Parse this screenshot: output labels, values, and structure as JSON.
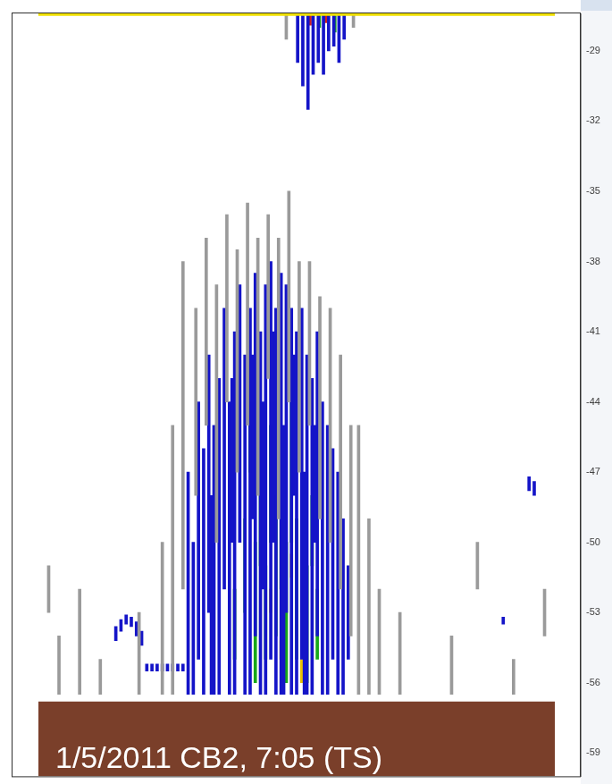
{
  "chart_data": {
    "type": "bar",
    "annotation": "1/5/2011 CB2, 7:05 (TS)",
    "xlim": [
      0,
      100
    ],
    "ylim": [
      -60,
      -27.4
    ],
    "yticks": [
      -29,
      -32,
      -35,
      -38,
      -41,
      -44,
      -47,
      -50,
      -53,
      -56,
      -59
    ],
    "tick_labels": "y",
    "grid": false,
    "series": [
      {
        "color": "#9a9a9a",
        "x": [
          24,
          26,
          28,
          30.5,
          32.5,
          34.5,
          36.5,
          38.5,
          40.5,
          42.5,
          44.5,
          46.5,
          48.5,
          50.5,
          52.5,
          54.5,
          56.5,
          58.5,
          60.5,
          62,
          64,
          66,
          70,
          8,
          4,
          2,
          80,
          85,
          92,
          98,
          12,
          19.5,
          48,
          61
        ],
        "values": [
          [
            -56.5,
            -50
          ],
          [
            -56.5,
            -45
          ],
          [
            -52,
            -38
          ],
          [
            -48,
            -40
          ],
          [
            -45,
            -37
          ],
          [
            -50,
            -39
          ],
          [
            -44,
            -36
          ],
          [
            -47,
            -37.5
          ],
          [
            -45,
            -35.5
          ],
          [
            -48,
            -37
          ],
          [
            -43,
            -36
          ],
          [
            -49,
            -37
          ],
          [
            -44,
            -35
          ],
          [
            -47,
            -38
          ],
          [
            -45,
            -38
          ],
          [
            -49,
            -39.5
          ],
          [
            -50,
            -40
          ],
          [
            -52,
            -42
          ],
          [
            -54,
            -45
          ],
          [
            -56.5,
            -45
          ],
          [
            -56.5,
            -49
          ],
          [
            -56.5,
            -52
          ],
          [
            -56.5,
            -53
          ],
          [
            -56.5,
            -52
          ],
          [
            -56.5,
            -54
          ],
          [
            -53,
            -51
          ],
          [
            -56.5,
            -54
          ],
          [
            -52,
            -50
          ],
          [
            -56.5,
            -55
          ],
          [
            -54,
            -52
          ],
          [
            -56.5,
            -55
          ],
          [
            -56.5,
            -53
          ],
          [
            -28.5,
            -27.4
          ],
          [
            -28,
            -27.4
          ]
        ]
      },
      {
        "color": "#1414c8",
        "x": [
          29,
          30,
          31,
          32,
          33,
          34,
          35,
          36,
          37,
          38,
          39,
          40,
          41,
          42,
          43,
          44,
          45,
          46,
          47,
          48,
          49,
          50,
          51,
          52,
          53,
          54,
          55,
          56,
          57,
          58,
          59,
          60,
          33.5,
          37.5,
          41.5,
          43.5,
          45.5,
          47.5,
          49.5,
          51.5,
          53.5,
          15,
          16,
          17,
          18,
          19,
          20,
          21,
          22,
          23,
          24,
          25,
          26,
          27,
          28,
          95,
          96,
          90,
          50.2,
          51.2,
          52.2,
          53.2,
          54.2,
          55.2,
          56.2,
          57.2,
          58.2,
          59.2
        ],
        "values": [
          [
            -56.5,
            -47
          ],
          [
            -56.5,
            -50
          ],
          [
            -55,
            -44
          ],
          [
            -56.5,
            -46
          ],
          [
            -53,
            -42
          ],
          [
            -56.5,
            -45
          ],
          [
            -56.5,
            -43
          ],
          [
            -52,
            -40
          ],
          [
            -56.5,
            -44
          ],
          [
            -56.5,
            -41
          ],
          [
            -50,
            -39
          ],
          [
            -56.5,
            -42
          ],
          [
            -56.5,
            -40
          ],
          [
            -54,
            -38.5
          ],
          [
            -56.5,
            -41
          ],
          [
            -56.5,
            -39
          ],
          [
            -55,
            -38
          ],
          [
            -56.5,
            -40
          ],
          [
            -56.5,
            -38.5
          ],
          [
            -53,
            -39
          ],
          [
            -56.5,
            -40
          ],
          [
            -56.5,
            -41
          ],
          [
            -55,
            -40
          ],
          [
            -56.5,
            -42
          ],
          [
            -56.5,
            -43
          ],
          [
            -54,
            -41
          ],
          [
            -56.5,
            -44
          ],
          [
            -56.5,
            -45
          ],
          [
            -55,
            -46
          ],
          [
            -56.5,
            -47
          ],
          [
            -56.5,
            -49
          ],
          [
            -55,
            -51
          ],
          [
            -56.5,
            -48
          ],
          [
            -50,
            -43
          ],
          [
            -49,
            -42
          ],
          [
            -52,
            -44
          ],
          [
            -50,
            -41
          ],
          [
            -56.5,
            -45
          ],
          [
            -48,
            -42
          ],
          [
            -56.5,
            -47
          ],
          [
            -50,
            -45
          ],
          [
            -54.2,
            -53.6
          ],
          [
            -53.8,
            -53.3
          ],
          [
            -53.5,
            -53.1
          ],
          [
            -53.6,
            -53.2
          ],
          [
            -54,
            -53.4
          ],
          [
            -54.4,
            -53.8
          ],
          [
            -55.5,
            -55.2
          ],
          [
            -55.5,
            -55.2
          ],
          [
            -55.5,
            -55.2
          ],
          [
            -55.5,
            -55.2
          ],
          [
            -55.5,
            -55.2
          ],
          [
            -55.5,
            -55.2
          ],
          [
            -55.5,
            -55.2
          ],
          [
            -55.5,
            -55.2
          ],
          [
            -47.8,
            -47.2
          ],
          [
            -48,
            -47.4
          ],
          [
            -53.5,
            -53.2
          ],
          [
            -29.5,
            -27.4
          ],
          [
            -30.5,
            -27.4
          ],
          [
            -31.5,
            -27.4
          ],
          [
            -30,
            -27.4
          ],
          [
            -29.5,
            -27.4
          ],
          [
            -30,
            -27.4
          ],
          [
            -29,
            -27.4
          ],
          [
            -28.8,
            -27.4
          ],
          [
            -29.5,
            -27.4
          ],
          [
            -28.5,
            -27.4
          ]
        ]
      },
      {
        "color": "#18a818",
        "x": [
          38,
          40,
          42,
          43,
          44,
          45,
          46,
          47,
          48,
          49,
          50,
          51,
          52,
          53,
          54,
          46.5,
          41,
          54.4,
          57.4
        ],
        "values": [
          [
            -55,
            -52
          ],
          [
            -53,
            -49
          ],
          [
            -56,
            -50
          ],
          [
            -51,
            -47
          ],
          [
            -55,
            -51
          ],
          [
            -50,
            -45
          ],
          [
            -54,
            -48
          ],
          [
            -52,
            -46
          ],
          [
            -56,
            -50
          ],
          [
            -50,
            -44
          ],
          [
            -55,
            -49
          ],
          [
            -53,
            -47
          ],
          [
            -56,
            -51
          ],
          [
            -51,
            -48
          ],
          [
            -55,
            -52
          ],
          [
            -44,
            -42
          ],
          [
            -47,
            -45
          ],
          [
            -28,
            -27.4
          ],
          [
            -28.2,
            -27.5
          ]
        ]
      },
      {
        "color": "#e8c000",
        "x": [
          45,
          47,
          49,
          51,
          50
        ],
        "values": [
          [
            -53,
            -52
          ],
          [
            -55,
            -54.2
          ],
          [
            -51.5,
            -50.5
          ],
          [
            -56,
            -55
          ],
          [
            -54,
            -53.5
          ]
        ]
      },
      {
        "color": "#d02020",
        "x": [
          52.6,
          55.6
        ],
        "values": [
          [
            -27.9,
            -27.4
          ],
          [
            -27.8,
            -27.4
          ]
        ]
      },
      {
        "type": "area",
        "color": "#7a3f2a",
        "x": [
          0,
          100
        ],
        "values": [
          -56.8,
          -56.8
        ]
      },
      {
        "type": "line",
        "color": "#f0e000",
        "x": [
          0,
          100
        ],
        "values": [
          -27.45,
          -27.45
        ]
      }
    ]
  }
}
